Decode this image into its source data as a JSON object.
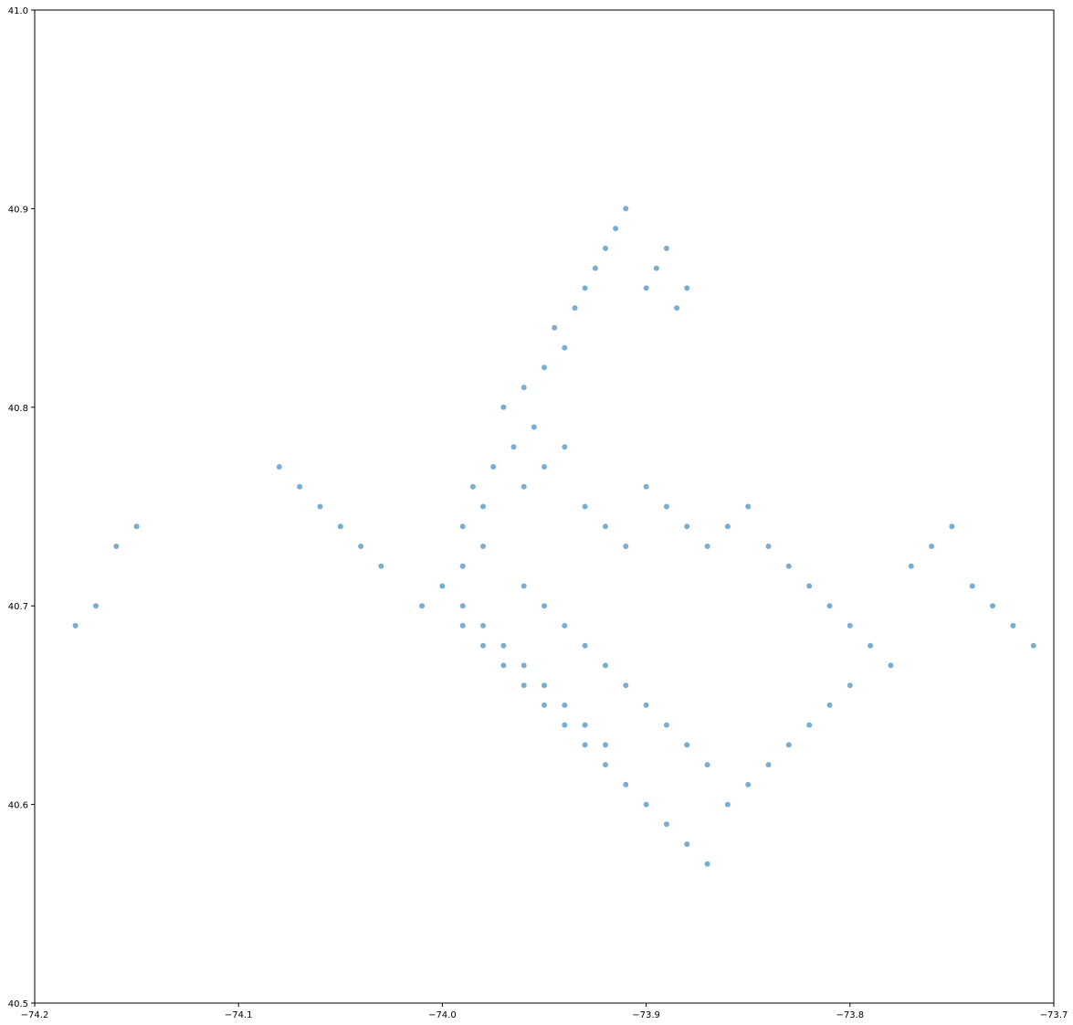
{
  "chart_data": {
    "type": "scatter",
    "title": "",
    "xlabel": "",
    "ylabel": "",
    "xlim": [
      -74.2,
      -73.7
    ],
    "ylim": [
      40.5,
      41.0
    ],
    "xticks": [
      -74.2,
      -74.1,
      -74.0,
      -73.9,
      -73.8,
      -73.7
    ],
    "xtick_labels": [
      "−74.2",
      "−74.1",
      "−74.0",
      "−73.9",
      "−73.8",
      "−73.7"
    ],
    "yticks": [
      40.5,
      40.6,
      40.7,
      40.8,
      40.9,
      41.0
    ],
    "ytick_labels": [
      "40.5",
      "40.6",
      "40.7",
      "40.8",
      "40.9",
      "41.0"
    ],
    "grid": false,
    "legend": "none",
    "color": "#1f77b4",
    "series": [
      {
        "x": [
          -73.985,
          -73.975,
          -73.965,
          -73.955,
          -73.99,
          -73.98,
          -73.97,
          -73.96,
          -73.95,
          -73.94,
          -73.945,
          -73.935,
          -73.93,
          -73.925,
          -73.92,
          -73.915,
          -73.91,
          -73.9,
          -73.895,
          -73.89,
          -73.885,
          -73.88,
          -73.99,
          -73.98,
          -73.96,
          -73.95,
          -73.94,
          -73.93,
          -73.92,
          -73.91,
          -73.9,
          -73.89,
          -73.88,
          -73.87,
          -73.86,
          -73.85,
          -73.84,
          -73.83,
          -73.82,
          -73.81,
          -73.8,
          -73.79,
          -73.78,
          -73.77,
          -73.76,
          -73.75,
          -73.74,
          -73.73,
          -73.72,
          -73.71,
          -73.96,
          -73.95,
          -73.94,
          -73.93,
          -73.92,
          -73.91,
          -73.9,
          -73.89,
          -73.88,
          -73.87,
          -73.99,
          -73.98,
          -73.97,
          -73.96,
          -73.95,
          -73.94,
          -73.93,
          -73.92,
          -73.91,
          -73.9,
          -73.89,
          -73.88,
          -73.87,
          -73.86,
          -73.85,
          -73.84,
          -73.83,
          -73.82,
          -73.81,
          -73.8,
          -74.01,
          -74.0,
          -73.99,
          -73.98,
          -73.97,
          -73.96,
          -73.95,
          -73.94,
          -73.93,
          -73.92,
          -74.05,
          -74.04,
          -74.03,
          -74.06,
          -74.07,
          -74.08,
          -74.15,
          -74.16,
          -74.17,
          -74.18
        ],
        "y": [
          40.76,
          40.77,
          40.78,
          40.79,
          40.74,
          40.75,
          40.8,
          40.81,
          40.82,
          40.83,
          40.84,
          40.85,
          40.86,
          40.87,
          40.88,
          40.89,
          40.9,
          40.86,
          40.87,
          40.88,
          40.85,
          40.86,
          40.72,
          40.73,
          40.71,
          40.7,
          40.69,
          40.68,
          40.67,
          40.66,
          40.65,
          40.64,
          40.63,
          40.62,
          40.74,
          40.75,
          40.73,
          40.72,
          40.71,
          40.7,
          40.69,
          40.68,
          40.67,
          40.72,
          40.73,
          40.74,
          40.71,
          40.7,
          40.69,
          40.68,
          40.76,
          40.77,
          40.78,
          40.75,
          40.74,
          40.73,
          40.76,
          40.75,
          40.74,
          40.73,
          40.69,
          40.68,
          40.67,
          40.66,
          40.65,
          40.64,
          40.63,
          40.62,
          40.61,
          40.6,
          40.59,
          40.58,
          40.57,
          40.6,
          40.61,
          40.62,
          40.63,
          40.64,
          40.65,
          40.66,
          40.7,
          40.71,
          40.7,
          40.69,
          40.68,
          40.67,
          40.66,
          40.65,
          40.64,
          40.63,
          40.74,
          40.73,
          40.72,
          40.75,
          40.76,
          40.77,
          40.74,
          40.73,
          40.7,
          40.69
        ]
      }
    ]
  }
}
